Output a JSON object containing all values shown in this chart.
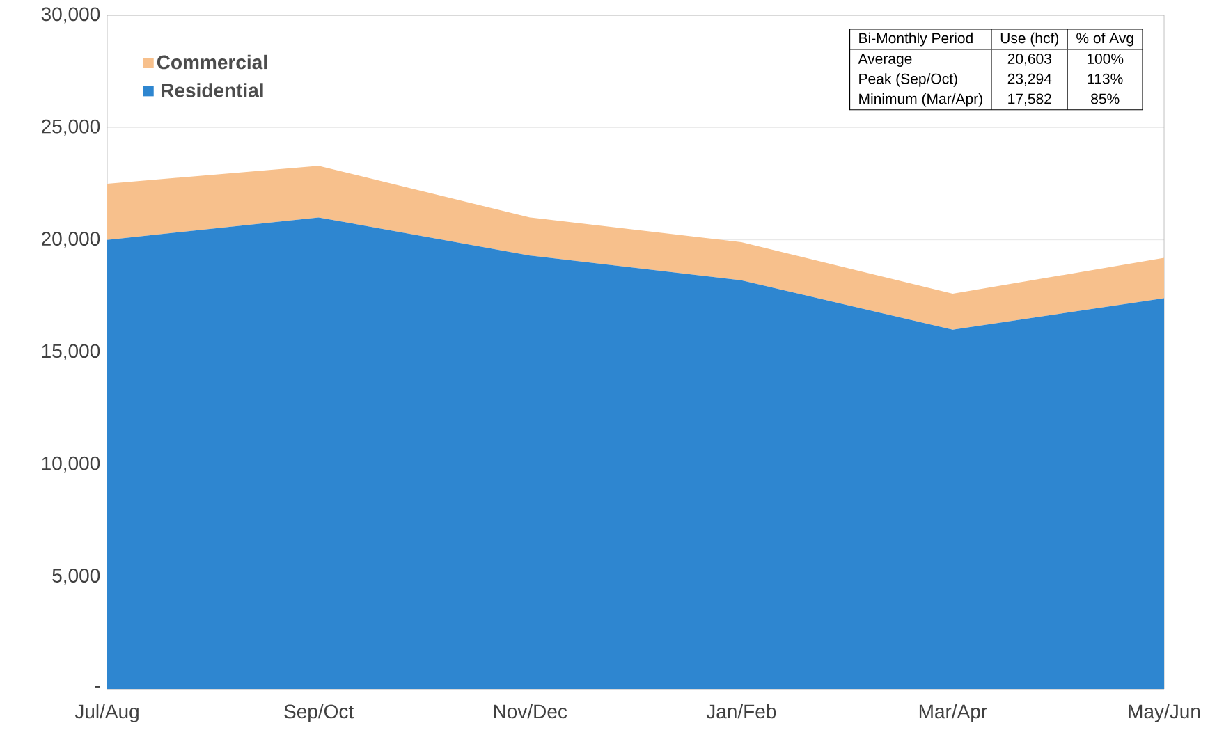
{
  "chart_data": {
    "type": "area",
    "stacked": true,
    "categories": [
      "Jul/Aug",
      "Sep/Oct",
      "Nov/Dec",
      "Jan/Feb",
      "Mar/Apr",
      "May/Jun"
    ],
    "series": [
      {
        "name": "Residential",
        "color": "#2e86d0",
        "values": [
          20000,
          21000,
          19300,
          18200,
          16000,
          17400
        ]
      },
      {
        "name": "Commercial",
        "color": "#f7c08c",
        "values": [
          2500,
          2300,
          1700,
          1700,
          1600,
          1800
        ]
      }
    ],
    "ylim": [
      0,
      30000
    ],
    "yticks": [
      {
        "value": 0,
        "label": "-"
      },
      {
        "value": 5000,
        "label": "5,000"
      },
      {
        "value": 10000,
        "label": "10,000"
      },
      {
        "value": 15000,
        "label": "15,000"
      },
      {
        "value": 20000,
        "label": "20,000"
      },
      {
        "value": 25000,
        "label": "25,000"
      },
      {
        "value": 30000,
        "label": "30,000"
      }
    ],
    "grid": "y",
    "legend": "top left",
    "annotations": [
      "Bi-Monthly Period",
      "Use (hcf)",
      "% of Avg",
      "Average",
      "20,603",
      "100%",
      "Peak (Sep/Oct)",
      "23,294",
      "113%",
      "Minimum (Mar/Apr)",
      "17,582",
      "85%"
    ]
  }
}
